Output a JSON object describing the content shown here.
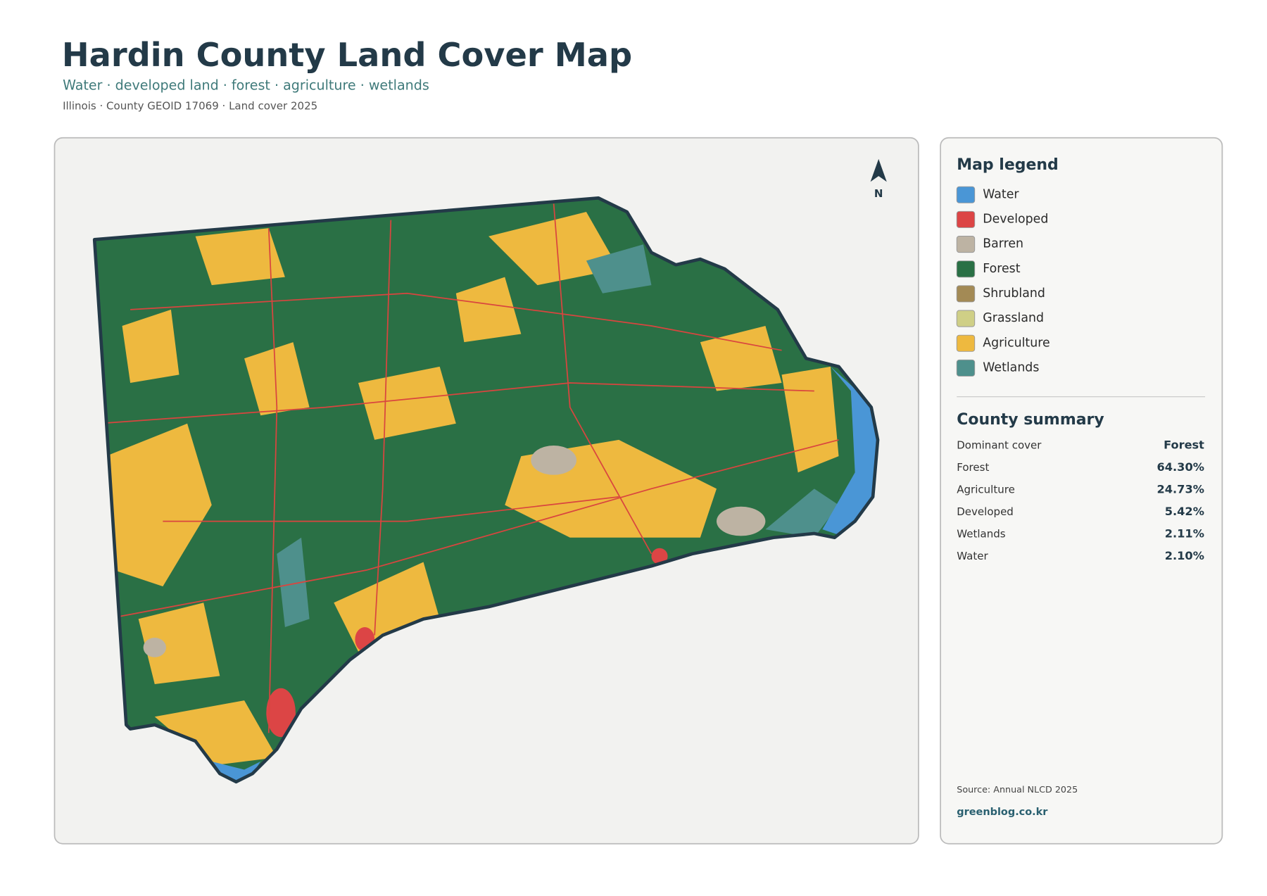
{
  "header": {
    "title": "Hardin County Land Cover Map",
    "subtitle": "Water · developed land · forest · agriculture · wetlands",
    "meta": "Illinois · County GEOID 17069 · Land cover 2025"
  },
  "map": {
    "north_label": "N"
  },
  "legend": {
    "title": "Map legend",
    "items": [
      {
        "label": "Water",
        "color": "#4a96d6"
      },
      {
        "label": "Developed",
        "color": "#dc4545"
      },
      {
        "label": "Barren",
        "color": "#bdb3a3"
      },
      {
        "label": "Forest",
        "color": "#2a7045"
      },
      {
        "label": "Shrubland",
        "color": "#a38a55"
      },
      {
        "label": "Grassland",
        "color": "#cfcf86"
      },
      {
        "label": "Agriculture",
        "color": "#eeb93f"
      },
      {
        "label": "Wetlands",
        "color": "#4e908c"
      }
    ]
  },
  "summary": {
    "title": "County summary",
    "rows": [
      {
        "label": "Dominant cover",
        "value": "Forest"
      },
      {
        "label": "Forest",
        "value": "64.30%"
      },
      {
        "label": "Agriculture",
        "value": "24.73%"
      },
      {
        "label": "Developed",
        "value": "5.42%"
      },
      {
        "label": "Wetlands",
        "value": "2.11%"
      },
      {
        "label": "Water",
        "value": "2.10%"
      }
    ]
  },
  "footer": {
    "source": "Source: Annual NLCD 2025",
    "site": "greenblog.co.kr"
  }
}
